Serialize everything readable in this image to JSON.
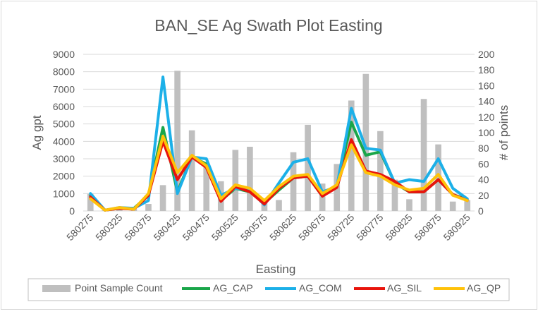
{
  "colors": {
    "AG_CAP": "#1aa64a",
    "AG_COM": "#1cb0e8",
    "AG_SIL": "#e8140c",
    "AG_QP": "#ffc20a",
    "bars": "#bfbfbf",
    "grid": "#d9d9d9",
    "text": "#595959"
  },
  "chart_data": {
    "type": "bar+line",
    "title": "BAN_SE Ag Swath Plot Easting",
    "xlabel": "Easting",
    "ylabel": "Ag gpt",
    "y2label": "# of points",
    "ylim": [
      0,
      9000
    ],
    "y2lim": [
      0,
      200
    ],
    "yticks": [
      "0",
      "1000",
      "2000",
      "3000",
      "4000",
      "5000",
      "6000",
      "7000",
      "8000",
      "9000"
    ],
    "y2ticks": [
      "0",
      "20",
      "40",
      "60",
      "80",
      "100",
      "120",
      "140",
      "160",
      "180",
      "200"
    ],
    "x": [
      580275,
      580300,
      580325,
      580350,
      580375,
      580400,
      580425,
      580450,
      580475,
      580500,
      580525,
      580550,
      580575,
      580600,
      580625,
      580650,
      580675,
      580700,
      580725,
      580750,
      580775,
      580800,
      580825,
      580850,
      580875,
      580900,
      580925
    ],
    "xticklabels": [
      "580275",
      "580325",
      "580375",
      "580425",
      "580475",
      "580525",
      "580575",
      "580625",
      "580675",
      "580725",
      "580775",
      "580825",
      "580875",
      "580925"
    ],
    "legend": [
      "Point Sample Count",
      "AG_CAP",
      "AG_COM",
      "AG_SIL",
      "AG_QP"
    ],
    "bars": {
      "name": "Point Sample Count",
      "values": [
        22,
        1,
        2,
        3,
        9,
        33,
        179,
        103,
        60,
        38,
        78,
        82,
        10,
        14,
        75,
        110,
        35,
        60,
        141,
        175,
        102,
        40,
        15,
        143,
        85,
        12,
        14
      ]
    },
    "series": [
      {
        "name": "AG_CAP",
        "values": [
          900,
          50,
          150,
          150,
          900,
          4800,
          1100,
          3100,
          2700,
          600,
          1300,
          1100,
          450,
          1200,
          1900,
          2000,
          850,
          1400,
          5100,
          3200,
          3400,
          1600,
          1100,
          1100,
          1800,
          950,
          650
        ]
      },
      {
        "name": "AG_COM",
        "values": [
          1000,
          50,
          200,
          150,
          600,
          7700,
          1000,
          3100,
          3000,
          900,
          1300,
          1200,
          350,
          1600,
          2800,
          3000,
          1100,
          1400,
          5900,
          3600,
          3500,
          1600,
          1800,
          1700,
          3000,
          1300,
          700
        ]
      },
      {
        "name": "AG_SIL",
        "values": [
          800,
          50,
          150,
          100,
          900,
          4000,
          1800,
          3100,
          2500,
          550,
          1400,
          1100,
          400,
          1300,
          1900,
          2000,
          850,
          1350,
          4100,
          2300,
          2100,
          1700,
          1100,
          1100,
          1800,
          950,
          600
        ]
      },
      {
        "name": "AG_QP",
        "values": [
          700,
          50,
          200,
          100,
          1000,
          4300,
          2200,
          3200,
          2600,
          700,
          1500,
          1300,
          600,
          1400,
          2000,
          2100,
          1000,
          1500,
          3800,
          2200,
          2000,
          1500,
          1200,
          1300,
          2100,
          900,
          600
        ]
      }
    ]
  }
}
